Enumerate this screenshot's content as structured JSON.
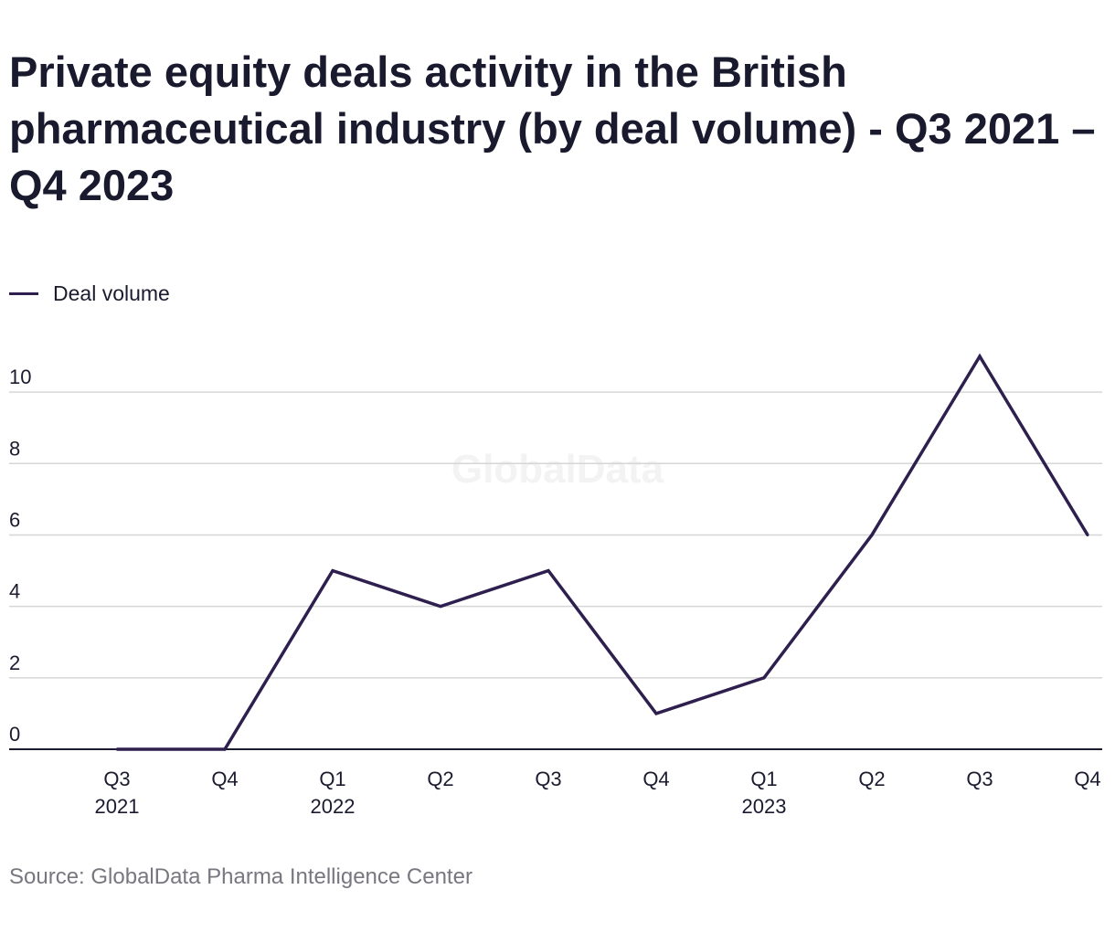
{
  "title": "Private equity deals activity in the British pharmaceutical industry (by deal volume) - Q3 2021 – Q4 2023",
  "legend": {
    "label": "Deal volume"
  },
  "source": "Source: GlobalData Pharma Intelligence Center",
  "watermark": "GlobalData",
  "colors": {
    "line": "#2e1f4f",
    "grid": "#d6d6d6",
    "axis": "#1b1b2f",
    "text": "#1b1b2f",
    "source": "#77777f",
    "watermark": "#f3f3f3"
  },
  "chart_data": {
    "type": "line",
    "categories": [
      "Q3 2021",
      "Q4 2021",
      "Q1 2022",
      "Q2 2022",
      "Q3 2022",
      "Q4 2022",
      "Q1 2023",
      "Q2 2023",
      "Q3 2023",
      "Q4 2023"
    ],
    "x_tick_labels": [
      [
        "Q3",
        "2021"
      ],
      [
        "Q4"
      ],
      [
        "Q1",
        "2022"
      ],
      [
        "Q2"
      ],
      [
        "Q3"
      ],
      [
        "Q4"
      ],
      [
        "Q1",
        "2023"
      ],
      [
        "Q2"
      ],
      [
        "Q3"
      ],
      [
        "Q4"
      ]
    ],
    "series": [
      {
        "name": "Deal volume",
        "values": [
          0,
          0,
          5,
          4,
          5,
          1,
          2,
          6,
          11,
          6
        ]
      }
    ],
    "y_ticks": [
      0,
      2,
      4,
      6,
      8,
      10
    ],
    "ylim": [
      0,
      11
    ],
    "grid": true,
    "legend_position": "top-left"
  }
}
